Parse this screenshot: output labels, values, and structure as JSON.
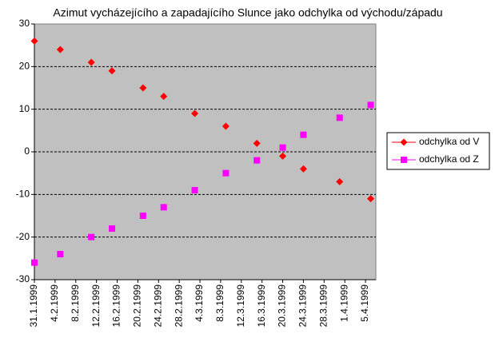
{
  "chart_data": {
    "type": "scatter",
    "title": "Azimut vycházejícího a zapadajícího Slunce jako odchylka od východu/západu",
    "x": [
      "1999-01-31",
      "1999-02-05",
      "1999-02-11",
      "1999-02-15",
      "1999-02-21",
      "1999-02-25",
      "1999-03-03",
      "1999-03-09",
      "1999-03-15",
      "1999-03-20",
      "1999-03-24",
      "1999-03-31",
      "1999-04-06"
    ],
    "series": [
      {
        "name": "odchylka od V",
        "color": "#ff0000",
        "marker": "diamond",
        "values": [
          26,
          24,
          21,
          19,
          15,
          13,
          9,
          6,
          2,
          -1,
          -4,
          -7,
          -11
        ]
      },
      {
        "name": "odchylka od Z",
        "color": "#ff00ff",
        "marker": "square",
        "values": [
          -26,
          -24,
          -20,
          -18,
          -15,
          -13,
          -9,
          -5,
          -2,
          1,
          4,
          8,
          11
        ]
      }
    ],
    "xlim": [
      "1999-01-31",
      "1999-04-07"
    ],
    "xticks": [
      {
        "value": "1999-01-31",
        "label": "31.1.1999"
      },
      {
        "value": "1999-02-04",
        "label": "4.2.1999"
      },
      {
        "value": "1999-02-08",
        "label": "8.2.1999"
      },
      {
        "value": "1999-02-12",
        "label": "12.2.1999"
      },
      {
        "value": "1999-02-16",
        "label": "16.2.1999"
      },
      {
        "value": "1999-02-20",
        "label": "20.2.1999"
      },
      {
        "value": "1999-02-24",
        "label": "24.2.1999"
      },
      {
        "value": "1999-02-28",
        "label": "28.2.1999"
      },
      {
        "value": "1999-03-04",
        "label": "4.3.1999"
      },
      {
        "value": "1999-03-08",
        "label": "8.3.1999"
      },
      {
        "value": "1999-03-12",
        "label": "12.3.1999"
      },
      {
        "value": "1999-03-16",
        "label": "16.3.1999"
      },
      {
        "value": "1999-03-20",
        "label": "20.3.1999"
      },
      {
        "value": "1999-03-24",
        "label": "24.3.1999"
      },
      {
        "value": "1999-03-28",
        "label": "28.3.1999"
      },
      {
        "value": "1999-04-01",
        "label": "1.4.1999"
      },
      {
        "value": "1999-04-05",
        "label": "5.4.1999"
      }
    ],
    "ylim": [
      -30,
      30
    ],
    "yticks": [
      -30,
      -20,
      -10,
      0,
      10,
      20,
      30
    ],
    "grid": true,
    "legend": "right"
  }
}
